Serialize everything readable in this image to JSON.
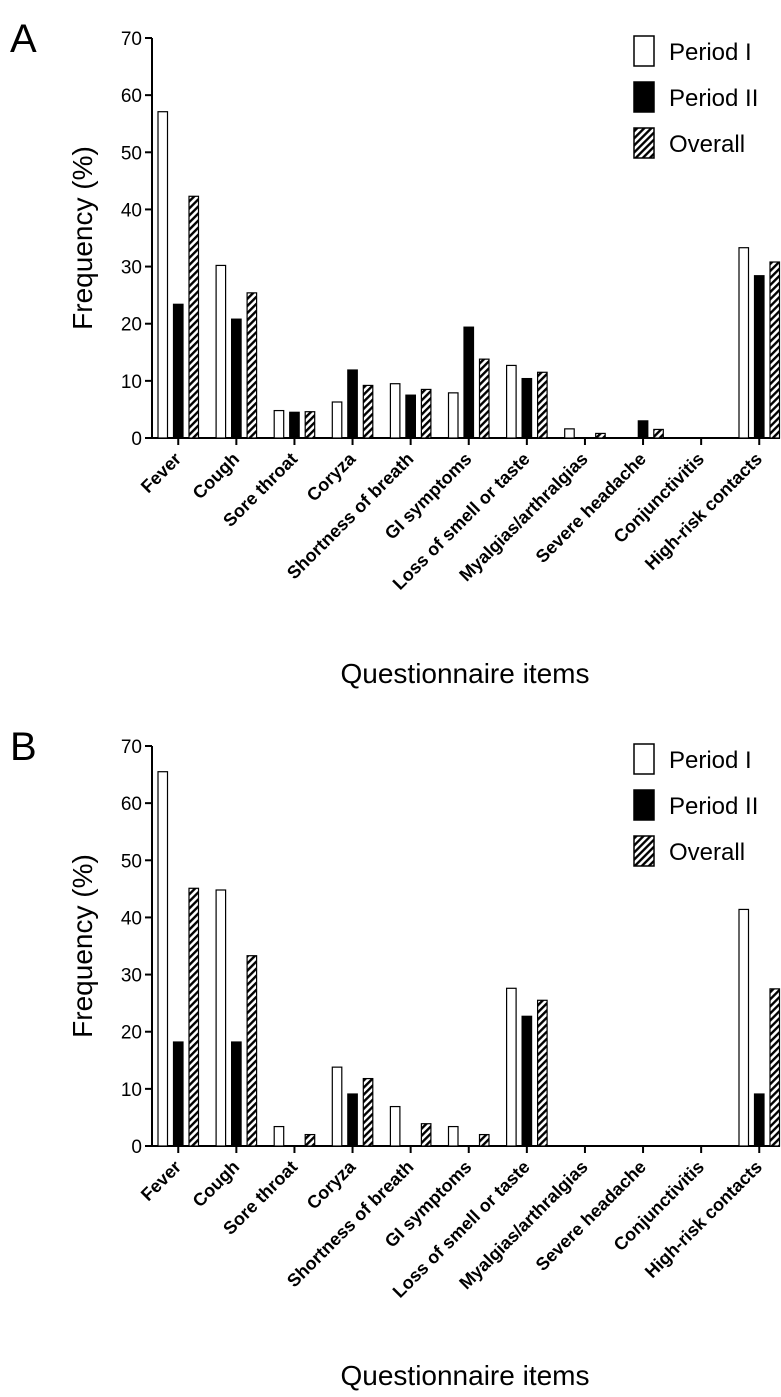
{
  "chart_data": [
    {
      "panel": "A",
      "type": "bar",
      "xlabel": "Questionnaire items",
      "ylabel": "Frequency (%)",
      "ylim": [
        0,
        70
      ],
      "yticks": [
        0,
        10,
        20,
        30,
        40,
        50,
        60,
        70
      ],
      "legend": "top-right",
      "categories": [
        "Fever",
        "Cough",
        "Sore throat",
        "Coryza",
        "Shortness of breath",
        "GI symptoms",
        "Loss of smell or taste",
        "Myalgias/arthralgias",
        "Severe headache",
        "Conjunctivitis",
        "High-risk contacts"
      ],
      "series": [
        {
          "name": "Period I",
          "fill": "white",
          "values": [
            57.1,
            30.2,
            4.8,
            6.3,
            9.5,
            7.9,
            12.7,
            1.6,
            0,
            0,
            33.3
          ]
        },
        {
          "name": "Period II",
          "fill": "black",
          "values": [
            23.4,
            20.8,
            4.5,
            11.9,
            7.5,
            19.4,
            10.4,
            0,
            3.0,
            0,
            28.4
          ]
        },
        {
          "name": "Overall",
          "fill": "hatch",
          "values": [
            42.3,
            25.4,
            4.6,
            9.2,
            8.5,
            13.8,
            11.5,
            0.8,
            1.5,
            0,
            30.8
          ]
        }
      ]
    },
    {
      "panel": "B",
      "type": "bar",
      "xlabel": "Questionnaire items",
      "ylabel": "Frequency (%)",
      "ylim": [
        0,
        70
      ],
      "yticks": [
        0,
        10,
        20,
        30,
        40,
        50,
        60,
        70
      ],
      "legend": "top-right",
      "categories": [
        "Fever",
        "Cough",
        "Sore throat",
        "Coryza",
        "Shortness of breath",
        "GI symptoms",
        "Loss of smell or taste",
        "Myalgias/arthralgias",
        "Severe headache",
        "Conjunctivitis",
        "High-risk contacts"
      ],
      "series": [
        {
          "name": "Period I",
          "fill": "white",
          "values": [
            65.5,
            44.8,
            3.4,
            13.8,
            6.9,
            3.4,
            27.6,
            0,
            0,
            0,
            41.4
          ]
        },
        {
          "name": "Period II",
          "fill": "black",
          "values": [
            18.2,
            18.2,
            0,
            9.1,
            0,
            0,
            22.7,
            0,
            0,
            0,
            9.1
          ]
        },
        {
          "name": "Overall",
          "fill": "hatch",
          "values": [
            45.1,
            33.3,
            2.0,
            11.8,
            3.9,
            2.0,
            25.5,
            0,
            0,
            0,
            27.5
          ]
        }
      ]
    }
  ]
}
